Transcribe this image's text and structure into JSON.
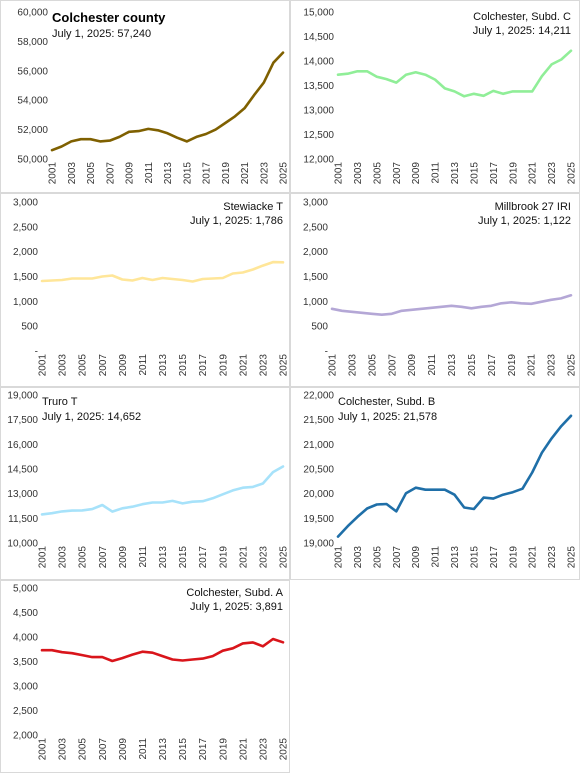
{
  "years": [
    "2001",
    "2002",
    "2003",
    "2004",
    "2005",
    "2006",
    "2007",
    "2008",
    "2009",
    "2010",
    "2011",
    "2012",
    "2013",
    "2014",
    "2015",
    "2016",
    "2017",
    "2018",
    "2019",
    "2020",
    "2021",
    "2022",
    "2023",
    "2024",
    "2025"
  ],
  "chart_data": [
    {
      "type": "line",
      "title": "Colchester county",
      "subtitle": "July 1, 2025: 57,240",
      "color": "#7f6000",
      "ylim": [
        50000,
        60000
      ],
      "yticks": [
        50000,
        52000,
        54000,
        56000,
        58000,
        60000
      ],
      "ytick_labels": [
        "50,000",
        "52,000",
        "54,000",
        "56,000",
        "58,000",
        "60,000"
      ],
      "values": [
        50600,
        50850,
        51200,
        51350,
        51350,
        51200,
        51250,
        51500,
        51850,
        51900,
        52050,
        51950,
        51750,
        51450,
        51200,
        51500,
        51700,
        52000,
        52450,
        52900,
        53450,
        54350,
        55200,
        56550,
        57240
      ]
    },
    {
      "type": "line",
      "title": "Colchester, Subd. C",
      "subtitle": "July 1, 2025: 14,211",
      "color": "#90ee98",
      "ylim": [
        12000,
        15000
      ],
      "yticks": [
        12000,
        12500,
        13000,
        13500,
        14000,
        14500,
        15000
      ],
      "ytick_labels": [
        "12,000",
        "12,500",
        "13,000",
        "13,500",
        "14,000",
        "14,500",
        "15,000"
      ],
      "values": [
        13720,
        13740,
        13790,
        13790,
        13680,
        13630,
        13560,
        13720,
        13770,
        13720,
        13620,
        13440,
        13380,
        13280,
        13330,
        13290,
        13390,
        13330,
        13380,
        13380,
        13380,
        13690,
        13930,
        14030,
        14211
      ]
    },
    {
      "type": "line",
      "title": "Stewiacke  T",
      "subtitle": "July 1, 2025: 1,786",
      "color": "#ffe699",
      "ylim": [
        0,
        3000
      ],
      "yticks": [
        0,
        500,
        1000,
        1500,
        2000,
        2500,
        3000
      ],
      "ytick_labels": [
        "-",
        "500",
        "1,000",
        "1,500",
        "2,000",
        "2,500",
        "3,000"
      ],
      "values": [
        1410,
        1420,
        1430,
        1460,
        1460,
        1460,
        1500,
        1520,
        1440,
        1420,
        1470,
        1430,
        1470,
        1450,
        1430,
        1400,
        1450,
        1460,
        1470,
        1560,
        1580,
        1640,
        1720,
        1790,
        1786
      ]
    },
    {
      "type": "line",
      "title": "Millbrook 27  IRI",
      "subtitle": "July 1, 2025: 1,122",
      "color": "#b4a7d6",
      "ylim": [
        0,
        3000
      ],
      "yticks": [
        0,
        500,
        1000,
        1500,
        2000,
        2500,
        3000
      ],
      "ytick_labels": [
        "-",
        "500",
        "1,000",
        "1,500",
        "2,000",
        "2,500",
        "3,000"
      ],
      "values": [
        850,
        810,
        790,
        770,
        750,
        730,
        750,
        810,
        830,
        850,
        870,
        890,
        910,
        890,
        860,
        890,
        910,
        960,
        980,
        960,
        950,
        990,
        1030,
        1060,
        1122
      ]
    },
    {
      "type": "line",
      "title": "Truro  T",
      "subtitle": "July 1, 2025: 14,652",
      "color": "#a7e2fa",
      "ylim": [
        10000,
        19000
      ],
      "yticks": [
        10000,
        11500,
        13000,
        14500,
        16000,
        17500,
        19000
      ],
      "ytick_labels": [
        "10,000",
        "11,500",
        "13,000",
        "14,500",
        "16,000",
        "17,500",
        "19,000"
      ],
      "values": [
        11740,
        11810,
        11920,
        11970,
        11980,
        12060,
        12310,
        11910,
        12110,
        12210,
        12360,
        12460,
        12460,
        12560,
        12410,
        12510,
        12540,
        12720,
        12960,
        13200,
        13360,
        13410,
        13620,
        14310,
        14652
      ]
    },
    {
      "type": "line",
      "title": "Colchester, Subd. B",
      "subtitle": "July 1, 2025: 21,578",
      "color": "#1f6fa8",
      "ylim": [
        19000,
        22000
      ],
      "yticks": [
        19000,
        19500,
        20000,
        20500,
        21000,
        21500,
        22000
      ],
      "ytick_labels": [
        "19,000",
        "19,500",
        "20,000",
        "20,500",
        "21,000",
        "21,500",
        "22,000"
      ],
      "values": [
        19130,
        19340,
        19530,
        19700,
        19780,
        19790,
        19640,
        20010,
        20120,
        20080,
        20080,
        20080,
        19980,
        19720,
        19690,
        19920,
        19900,
        19980,
        20030,
        20100,
        20430,
        20830,
        21120,
        21370,
        21578
      ]
    },
    {
      "type": "line",
      "title": "Colchester, Subd. A",
      "subtitle": "July 1, 2025: 3,891",
      "color": "#d9151b",
      "ylim": [
        2000,
        5000
      ],
      "yticks": [
        2000,
        2500,
        3000,
        3500,
        4000,
        4500,
        5000
      ],
      "ytick_labels": [
        "2,000",
        "2,500",
        "3,000",
        "3,500",
        "4,000",
        "4,500",
        "5,000"
      ],
      "values": [
        3730,
        3730,
        3690,
        3670,
        3630,
        3590,
        3590,
        3510,
        3570,
        3640,
        3700,
        3680,
        3610,
        3540,
        3520,
        3540,
        3560,
        3610,
        3720,
        3770,
        3870,
        3890,
        3810,
        3960,
        3891
      ]
    }
  ]
}
